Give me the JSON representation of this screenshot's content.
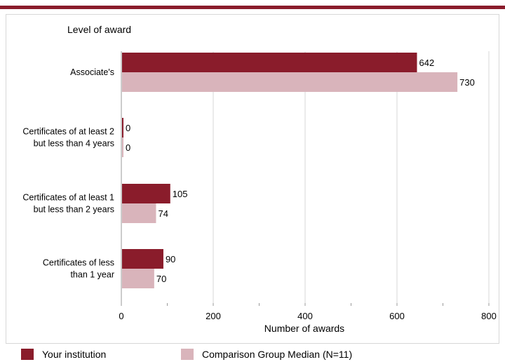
{
  "chart_data": {
    "type": "bar",
    "orientation": "horizontal",
    "title": "Level of award",
    "xlabel": "Number of awards",
    "categories": [
      "Associate's",
      "Certificates of at least 2 but less than 4 years",
      "Certificates of at least 1 but  less than 2 years",
      "Certificates of less than 1 year"
    ],
    "category_lines": [
      [
        "Associate's"
      ],
      [
        "Certificates of at least 2",
        "but less than 4 years"
      ],
      [
        "Certificates of at least 1",
        "but  less than 2 years"
      ],
      [
        "Certificates of less",
        "than 1 year"
      ]
    ],
    "series": [
      {
        "name": "Your institution",
        "values": [
          642,
          0,
          105,
          90
        ],
        "color": "#8a1c2b"
      },
      {
        "name": "Comparison Group Median (N=11)",
        "values": [
          730,
          0,
          74,
          70
        ],
        "color": "#d9b4bb"
      }
    ],
    "xlim": [
      0,
      800
    ],
    "xticks": [
      "0",
      "200",
      "400",
      "600",
      "800"
    ],
    "grid": true,
    "legend": "bottom"
  },
  "colors": {
    "accent": "#8a1c2b",
    "comparison": "#d9b4bb",
    "grid": "#d7d7d7"
  }
}
